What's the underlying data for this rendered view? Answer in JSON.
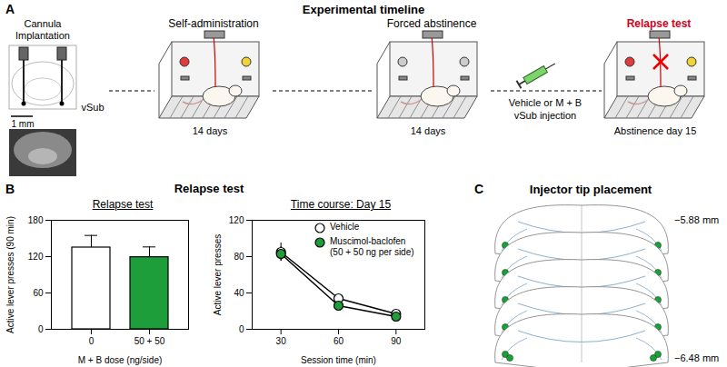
{
  "chart_data": [
    {
      "type": "bar",
      "title": "Relapse test",
      "categories": [
        "0",
        "50 + 50"
      ],
      "values": [
        135,
        119
      ],
      "errors": [
        20,
        17
      ],
      "colors": [
        "#ffffff",
        "#1e9e3a"
      ],
      "xlabel": "M + B dose (ng/side)",
      "ylabel": "Active lever presses (90 min)",
      "ylim": [
        0,
        180
      ],
      "yticks": [
        0,
        60,
        120,
        180
      ]
    },
    {
      "type": "line",
      "title": "Time course: Day 15",
      "x": [
        30,
        60,
        90
      ],
      "series": [
        {
          "name": "Vehicle",
          "color": "#ffffff",
          "marker": "circle",
          "values": [
            85,
            34,
            17
          ],
          "errors": [
            10,
            4,
            3
          ]
        },
        {
          "name": "Muscimol-baclofen (50 + 50 ng per side)",
          "color": "#1e9e3a",
          "marker": "circle",
          "values": [
            83,
            26,
            14
          ],
          "errors": [
            8,
            3,
            2
          ]
        }
      ],
      "xlabel": "Session time (min)",
      "ylabel": "Active lever presses",
      "xlim": [
        15,
        105
      ],
      "xticks": [
        30,
        60,
        90
      ],
      "ylim": [
        0,
        120
      ],
      "yticks": [
        0,
        40,
        80,
        120
      ],
      "legend": "top-right"
    }
  ],
  "panels": {
    "A": {
      "letter": "A",
      "title": "Experimental timeline",
      "surgery": {
        "label": "Cannula Implantation",
        "region": "vSub",
        "scale_bar": "1 mm"
      },
      "stages": [
        {
          "label": "Self-administration",
          "duration": "14 days"
        },
        {
          "label": "Forced abstinence",
          "duration": "14 days"
        },
        {
          "label": "Relapse test",
          "duration": "Abstinence day 15"
        }
      ],
      "injection": [
        "Vehicle or M + B",
        "vSub injection"
      ]
    },
    "B": {
      "letter": "B",
      "title": "Relapse test"
    },
    "C": {
      "letter": "C",
      "title": "Injector tip placement",
      "levels": [
        "−5.88 mm",
        "−6.48 mm"
      ]
    }
  }
}
